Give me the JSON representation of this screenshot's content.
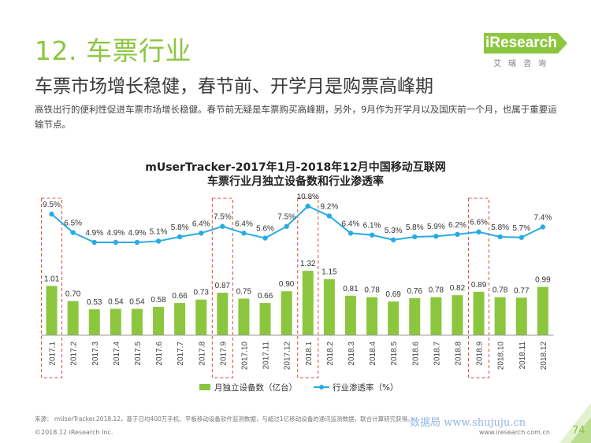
{
  "header": {
    "section_title": "12. 车票行业",
    "logo_text": "iResearch",
    "logo_sub": "艾瑞咨询",
    "headline": "车票市场增长稳健，春节前、开学月是购票高峰期",
    "description": "高铁出行的便利性促进车票市场增长稳健。春节前无疑是车票购买高峰期，另外，9月作为开学月以及国庆前一个月，也属于重要运输节点。"
  },
  "chart_data": {
    "type": "bar",
    "title": "mUserTracker-2017年1月-2018年12月中国移动互联网",
    "subtitle": "车票行业月独立设备数和行业渗透率",
    "categories": [
      "2017.1",
      "2017.2",
      "2017.3",
      "2017.4",
      "2017.5",
      "2017.6",
      "2017.7",
      "2017.8",
      "2017.9",
      "2017.10",
      "2017.11",
      "2017.12",
      "2018.1",
      "2018.2",
      "2018.3",
      "2018.4",
      "2018.5",
      "2018.6",
      "2018.7",
      "2018.8",
      "2018.9",
      "2018.10",
      "2018.11",
      "2018.12"
    ],
    "series": [
      {
        "name": "月独立设备数（亿台）",
        "type": "bar",
        "color": "#8cc63f",
        "values": [
          1.01,
          0.7,
          0.53,
          0.54,
          0.54,
          0.58,
          0.66,
          0.73,
          0.87,
          0.75,
          0.66,
          0.9,
          1.32,
          1.15,
          0.81,
          0.78,
          0.69,
          0.76,
          0.78,
          0.82,
          0.89,
          0.78,
          0.77,
          0.99
        ],
        "labels": [
          "1.01",
          "0.70",
          "0.53",
          "0.54",
          "0.54",
          "0.58",
          "0.66",
          "0.73",
          "0.87",
          "0.75",
          "0.66",
          "0.90",
          "1.32",
          "1.15",
          "0.81",
          "0.78",
          "0.69",
          "0.76",
          "0.78",
          "0.82",
          "0.89",
          "0.78",
          "0.77",
          "0.99"
        ]
      },
      {
        "name": "行业渗透率（%）",
        "type": "line",
        "color": "#29abe2",
        "values": [
          9.5,
          6.5,
          4.9,
          4.9,
          4.9,
          5.1,
          5.8,
          6.4,
          7.5,
          6.4,
          5.6,
          7.5,
          10.8,
          9.2,
          6.4,
          6.1,
          5.3,
          5.8,
          5.9,
          6.2,
          6.6,
          5.8,
          5.7,
          7.4
        ],
        "labels": [
          "9.5%",
          "6.5%",
          "4.9%",
          "4.9%",
          "4.9%",
          "5.1%",
          "5.8%",
          "6.4%",
          "7.5%",
          "6.4%",
          "5.6%",
          "7.5%",
          "10.8%",
          "9.2%",
          "6.4%",
          "6.1%",
          "5.3%",
          "5.8%",
          "5.9%",
          "6.2%",
          "6.6%",
          "5.8%",
          "5.7%",
          "7.4%"
        ]
      }
    ],
    "highlighted_categories": [
      "2017.1",
      "2017.9",
      "2018.1",
      "2018.9"
    ],
    "grid": false,
    "legend_position": "bottom"
  },
  "footer": {
    "source": "来源：  mUserTracker.2018.12，基于日均400万手机、平板移动设备软件监测数据，与超过1亿移动设备的通讯监测数据，联合计算研究获得。",
    "copyright": "©2018.12 iResearch Inc.",
    "site": "www.iresearch.com.cn",
    "page": "74",
    "watermark": "数据局 www.shujuju.cn"
  },
  "colors": {
    "accent_green": "#8cc63f",
    "line_blue": "#29abe2",
    "highlight_red": "#e0483e"
  }
}
